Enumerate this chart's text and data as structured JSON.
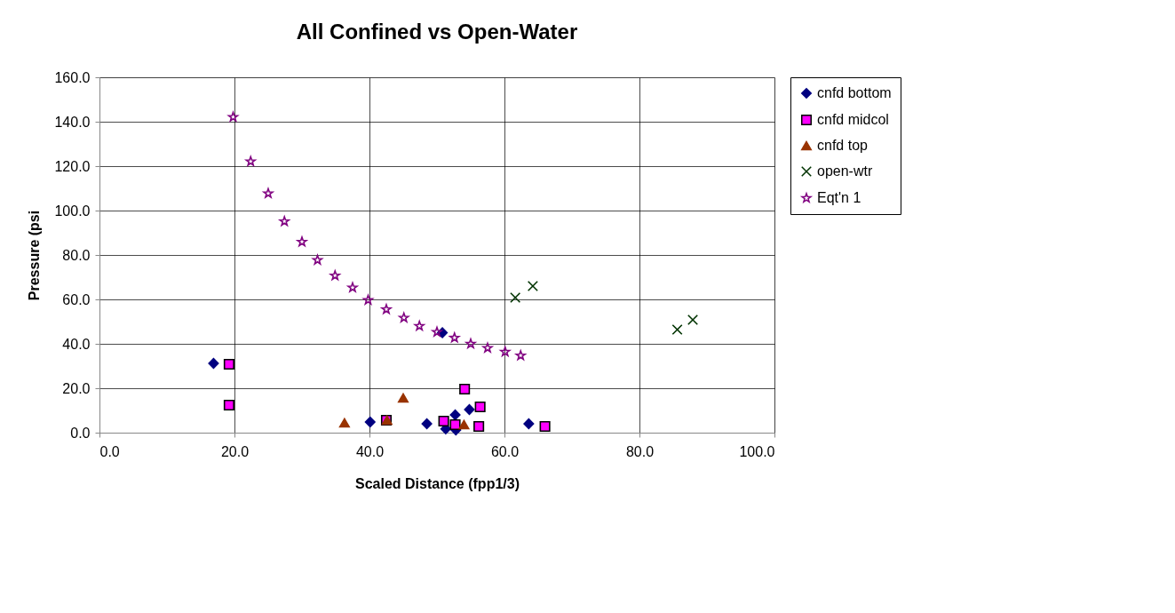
{
  "chart_data": {
    "type": "scatter",
    "title": "All Confined vs Open-Water",
    "xlabel": "Scaled Distance (fpp1/3)",
    "ylabel": "Pressure (psi",
    "xlim": [
      0,
      100
    ],
    "ylim": [
      0,
      160
    ],
    "xticks": [
      {
        "value": 0,
        "label": "0.0"
      },
      {
        "value": 20,
        "label": "20.0"
      },
      {
        "value": 40,
        "label": "40.0"
      },
      {
        "value": 60,
        "label": "60.0"
      },
      {
        "value": 80,
        "label": "80.0"
      },
      {
        "value": 100,
        "label": "100.0"
      }
    ],
    "yticks": [
      {
        "value": 0,
        "label": "0.0"
      },
      {
        "value": 20,
        "label": "20.0"
      },
      {
        "value": 40,
        "label": "40.0"
      },
      {
        "value": 60,
        "label": "60.0"
      },
      {
        "value": 80,
        "label": "80.0"
      },
      {
        "value": 100,
        "label": "100.0"
      },
      {
        "value": 120,
        "label": "120.0"
      },
      {
        "value": 140,
        "label": "140.0"
      },
      {
        "value": 160,
        "label": "160.0"
      }
    ],
    "grid": true,
    "legend": "right",
    "series": [
      {
        "name": "cnfd bottom",
        "color": "#000080",
        "marker": "diamond",
        "x": [
          16.9,
          40.1,
          48.5,
          50.8,
          51.3,
          52.7,
          52.8,
          54.8,
          63.6
        ],
        "values": [
          31.2,
          4.8,
          4,
          45,
          1.7,
          8,
          1.2,
          10.4,
          4
        ]
      },
      {
        "name": "cnfd midcol",
        "color": "#ff00ff",
        "marker": "square",
        "x": [
          19.2,
          19.2,
          42.5,
          51,
          52.7,
          54.1,
          56.4,
          56.2,
          66
        ],
        "values": [
          30.8,
          12.4,
          5.6,
          5.2,
          3.6,
          19.6,
          11.6,
          2.8,
          2.8
        ]
      },
      {
        "name": "cnfd top",
        "color": "#993300",
        "marker": "triangle",
        "x": [
          36.3,
          42.6,
          45,
          54
        ],
        "values": [
          4.4,
          5.6,
          15.6,
          3.6
        ]
      },
      {
        "name": "open-wtr",
        "color": "#003300",
        "marker": "cross",
        "x": [
          61.6,
          64.2,
          85.6,
          87.9
        ],
        "values": [
          60.8,
          66,
          46.4,
          50.8
        ]
      },
      {
        "name": "Eqt'n 1",
        "color": "#800080",
        "marker": "star",
        "x": [
          19.8,
          22.4,
          25.0,
          27.4,
          30.0,
          32.3,
          34.9,
          37.5,
          39.8,
          42.5,
          45.1,
          47.4,
          50.0,
          52.6,
          55.0,
          57.5,
          60.1,
          62.4
        ],
        "values": [
          142.1,
          122.1,
          107.7,
          95.1,
          85.9,
          77.7,
          70.7,
          65.3,
          59.7,
          55.5,
          51.7,
          48,
          45.3,
          42.7,
          40,
          38.1,
          36.4,
          34.7
        ]
      }
    ]
  }
}
